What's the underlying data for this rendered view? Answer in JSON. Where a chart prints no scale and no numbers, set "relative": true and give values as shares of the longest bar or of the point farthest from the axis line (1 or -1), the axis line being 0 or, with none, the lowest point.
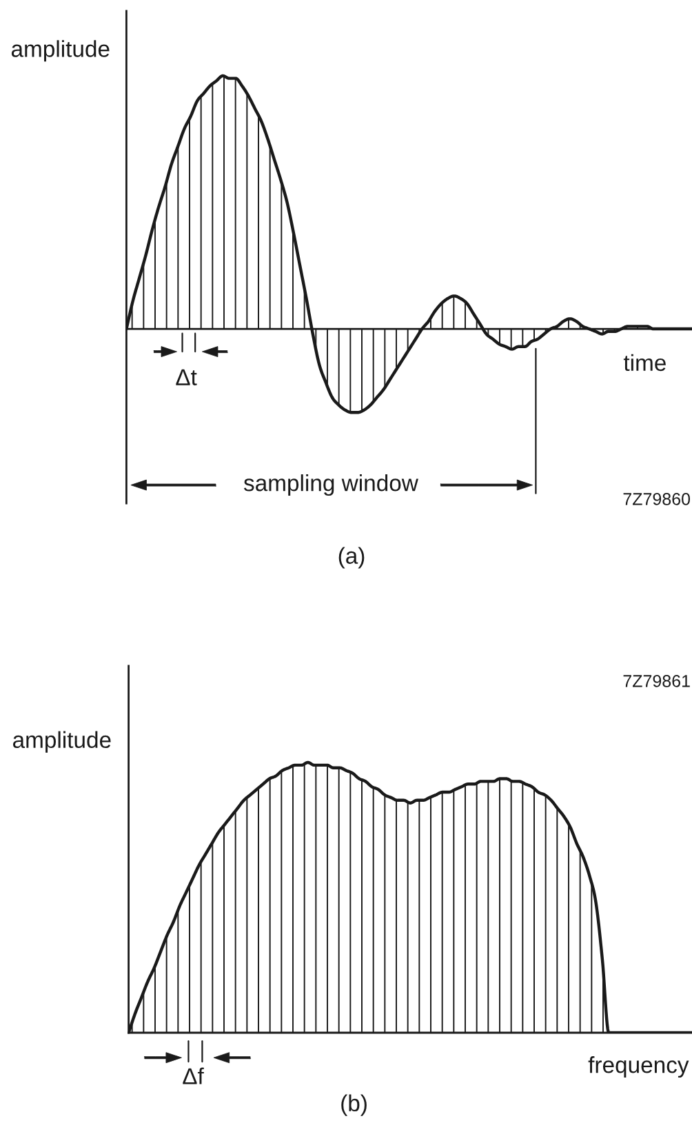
{
  "chart_data": [
    {
      "type": "area",
      "title": "(a)",
      "xlabel": "time",
      "ylabel": "amplitude",
      "relative": true,
      "color": "#1a1a1a",
      "categories": [
        null,
        null,
        null,
        null,
        null,
        null,
        null,
        null,
        null,
        null,
        null,
        null,
        null,
        null,
        null,
        null,
        null,
        null,
        null,
        null,
        null,
        null,
        null,
        null,
        null,
        null,
        null,
        null,
        null,
        null,
        null,
        null,
        null,
        null,
        null,
        null,
        null,
        null,
        null,
        null,
        null,
        null,
        null,
        null,
        null,
        null,
        null,
        null,
        null,
        null,
        null,
        null,
        null,
        null,
        null,
        null,
        null,
        null,
        null,
        null,
        null,
        null,
        null,
        null,
        null,
        null,
        null,
        null,
        null,
        null,
        null,
        null,
        null,
        null,
        null,
        null,
        null,
        null,
        null,
        null,
        null,
        null,
        null,
        null,
        null,
        null,
        null,
        null,
        null
      ],
      "values": [
        0,
        0.11,
        0.2,
        0.29,
        0.39,
        0.48,
        0.56,
        0.65,
        0.72,
        0.79,
        0.84,
        0.9,
        0.93,
        0.96,
        0.98,
        1.0,
        0.99,
        0.99,
        0.96,
        0.92,
        0.87,
        0.82,
        0.75,
        0.67,
        0.59,
        0.5,
        0.38,
        0.25,
        0.12,
        -0.02,
        -0.14,
        -0.21,
        -0.27,
        -0.3,
        -0.32,
        -0.33,
        -0.33,
        -0.32,
        -0.3,
        -0.27,
        -0.24,
        -0.2,
        -0.16,
        -0.12,
        -0.08,
        -0.04,
        0.0,
        0.03,
        0.07,
        0.1,
        0.12,
        0.13,
        0.12,
        0.1,
        0.06,
        0.02,
        -0.02,
        -0.04,
        -0.06,
        -0.07,
        -0.08,
        -0.07,
        -0.07,
        -0.05,
        -0.04,
        -0.02,
        0.0,
        0.01,
        0.03,
        0.04,
        0.03,
        0.01,
        0.0,
        -0.01,
        -0.02,
        -0.01,
        -0.01,
        0.0,
        0.01,
        0.01,
        0.01,
        0.01,
        0.0,
        0.0,
        0.0,
        0.0,
        0.0,
        0.0,
        0.0
      ],
      "annotations": [
        "Δt",
        "sampling window",
        "7Z79860"
      ]
    },
    {
      "type": "area",
      "title": "(b)",
      "xlabel": "frequency",
      "ylabel": "amplitude",
      "relative": true,
      "color": "#1a1a1a",
      "categories": [
        null,
        null,
        null,
        null,
        null,
        null,
        null,
        null,
        null,
        null,
        null,
        null,
        null,
        null,
        null,
        null,
        null,
        null,
        null,
        null,
        null,
        null,
        null,
        null,
        null,
        null,
        null,
        null,
        null,
        null,
        null,
        null,
        null,
        null,
        null,
        null,
        null,
        null,
        null,
        null,
        null,
        null,
        null,
        null,
        null,
        null,
        null,
        null,
        null,
        null,
        null,
        null,
        null,
        null,
        null,
        null,
        null,
        null,
        null,
        null,
        null,
        null,
        null,
        null,
        null,
        null,
        null,
        null,
        null,
        null,
        null,
        null,
        null,
        null,
        null,
        null,
        null,
        null,
        null,
        null,
        null,
        null,
        null,
        null,
        null,
        null,
        null,
        null,
        null
      ],
      "values": [
        0,
        0.07,
        0.13,
        0.19,
        0.24,
        0.3,
        0.36,
        0.41,
        0.47,
        0.52,
        0.57,
        0.62,
        0.66,
        0.7,
        0.74,
        0.77,
        0.8,
        0.83,
        0.86,
        0.88,
        0.9,
        0.92,
        0.94,
        0.95,
        0.97,
        0.98,
        0.99,
        0.99,
        1.0,
        0.99,
        0.99,
        0.99,
        0.98,
        0.98,
        0.97,
        0.96,
        0.94,
        0.93,
        0.91,
        0.9,
        0.88,
        0.87,
        0.86,
        0.86,
        0.85,
        0.86,
        0.86,
        0.87,
        0.88,
        0.89,
        0.89,
        0.9,
        0.91,
        0.92,
        0.92,
        0.93,
        0.93,
        0.93,
        0.94,
        0.94,
        0.93,
        0.93,
        0.92,
        0.91,
        0.89,
        0.88,
        0.86,
        0.83,
        0.8,
        0.76,
        0.7,
        0.65,
        0.58,
        0.48,
        0.27,
        0,
        0,
        0,
        0,
        0,
        0,
        0,
        0,
        0,
        0,
        0,
        0,
        0,
        0
      ],
      "annotations": [
        "Δf",
        "7Z79861"
      ]
    }
  ]
}
